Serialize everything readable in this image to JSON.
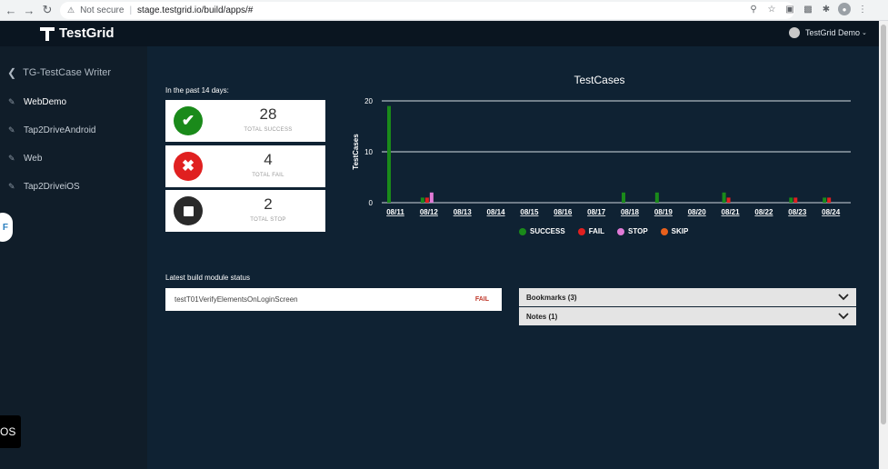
{
  "browser": {
    "security": "Not secure",
    "url": "stage.testgrid.io/build/apps/#"
  },
  "header": {
    "logo_text": "TestGrid",
    "user_label": "TestGrid Demo"
  },
  "sidebar": {
    "back_label": "TG-TestCase Writer",
    "items": [
      {
        "label": "WebDemo"
      },
      {
        "label": "Tap2DriveAndroid"
      },
      {
        "label": "Web"
      },
      {
        "label": "Tap2DriveiOS"
      }
    ],
    "float_tab_letter": "F",
    "chip_text": "OS"
  },
  "summary": {
    "period_label": "In the past 14 days:",
    "cards": [
      {
        "value": "28",
        "label": "TOTAL SUCCESS",
        "color": "#1a8a1a",
        "icon": "check-icon"
      },
      {
        "value": "4",
        "label": "TOTAL FAIL",
        "color": "#e02020",
        "icon": "x-icon"
      },
      {
        "value": "2",
        "label": "TOTAL STOP",
        "color": "#2a2a2a",
        "icon": "stop-icon"
      }
    ]
  },
  "chart_data": {
    "type": "bar",
    "title": "TestCases",
    "ylabel": "TestCases",
    "xlabel": "",
    "ylim": [
      0,
      20
    ],
    "yticks": [
      "0",
      "10",
      "20"
    ],
    "grid": true,
    "legend_position": "bottom",
    "categories": [
      "08/11",
      "08/12",
      "08/13",
      "08/14",
      "08/15",
      "08/16",
      "08/17",
      "08/18",
      "08/19",
      "08/20",
      "08/21",
      "08/22",
      "08/23",
      "08/24"
    ],
    "series": [
      {
        "name": "SUCCESS",
        "color": "#1a8a1a",
        "values": [
          19,
          1,
          0,
          0,
          0,
          0,
          0,
          2,
          2,
          0,
          2,
          0,
          1,
          1
        ]
      },
      {
        "name": "FAIL",
        "color": "#e02020",
        "values": [
          0,
          1,
          0,
          0,
          0,
          0,
          0,
          0,
          0,
          0,
          1,
          0,
          1,
          1
        ]
      },
      {
        "name": "STOP",
        "color": "#e07ad6",
        "values": [
          0,
          2,
          0,
          0,
          0,
          0,
          0,
          0,
          0,
          0,
          0,
          0,
          0,
          0
        ]
      },
      {
        "name": "SKIP",
        "color": "#e8601c",
        "values": [
          0,
          0,
          0,
          0,
          0,
          0,
          0,
          0,
          0,
          0,
          0,
          0,
          0,
          0
        ]
      }
    ]
  },
  "build_status": {
    "label": "Latest build module status",
    "module_name": "testT01VerifyElementsOnLoginScreen",
    "module_status": "FAIL"
  },
  "panels": {
    "bookmarks": "Bookmarks (3)",
    "notes": "Notes (1)"
  }
}
